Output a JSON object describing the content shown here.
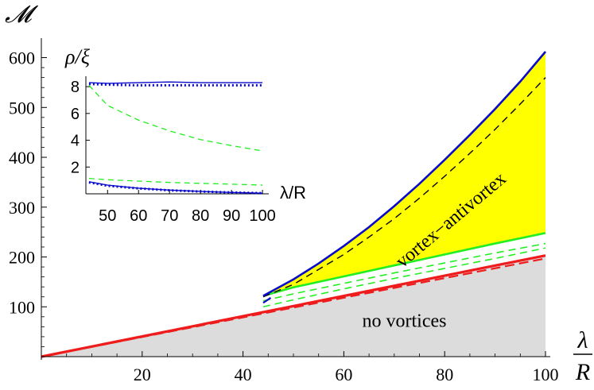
{
  "chart_data": {
    "type": "area",
    "main": {
      "ylabel": "𝓜",
      "xlabel_num": "λ",
      "xlabel_den": "R",
      "xlim": [
        0,
        100
      ],
      "ylim": [
        0,
        620
      ],
      "xticks": [
        {
          "v": 20,
          "label": "20"
        },
        {
          "v": 40,
          "label": "40"
        },
        {
          "v": 60,
          "label": "60"
        },
        {
          "v": 80,
          "label": "80"
        },
        {
          "v": 100,
          "label": "100"
        }
      ],
      "yticks": [
        {
          "v": 100,
          "label": "100"
        },
        {
          "v": 200,
          "label": "200"
        },
        {
          "v": 300,
          "label": "300"
        },
        {
          "v": 400,
          "label": "400"
        },
        {
          "v": 500,
          "label": "500"
        },
        {
          "v": 600,
          "label": "600"
        }
      ],
      "annotations": [
        {
          "text": "no vortices",
          "x": 72,
          "y": 60,
          "rotate": 0
        },
        {
          "text": "vortex−antivortex",
          "x": 82,
          "y": 265,
          "rotate": -40
        }
      ],
      "colors": {
        "red": "#ee1c1c",
        "green": "#22ee22",
        "blue": "#0a0acc",
        "yellow": "#ffff00",
        "gray": "#dcdcdc",
        "black": "#000000"
      },
      "series": {
        "red_solid": {
          "x": [
            0,
            100
          ],
          "y": [
            0,
            203
          ]
        },
        "red_dashed": {
          "x": [
            0,
            100
          ],
          "y": [
            0,
            197
          ]
        },
        "green_solid": {
          "x": [
            44,
            50,
            60,
            70,
            80,
            90,
            100
          ],
          "y": [
            122,
            139,
            161,
            183,
            205,
            227,
            248
          ]
        },
        "green_dashed_upper": {
          "x": [
            44,
            50,
            60,
            70,
            80,
            90,
            100
          ],
          "y": [
            112,
            126,
            147,
            168,
            188,
            208,
            227
          ]
        },
        "green_dashed_lower": {
          "x": [
            44,
            50,
            60,
            70,
            80,
            90,
            100
          ],
          "y": [
            100,
            114,
            136,
            157,
            177,
            197,
            218
          ]
        },
        "blue_solid": {
          "x": [
            44,
            50,
            55,
            60,
            65,
            70,
            75,
            80,
            85,
            90,
            95,
            100
          ],
          "y": [
            122,
            155,
            187,
            222,
            260,
            302,
            347,
            395,
            445,
            497,
            552,
            612
          ]
        },
        "blue_short": {
          "x": [
            44,
            45.5
          ],
          "y": [
            108,
            118
          ]
        },
        "black_dashed": {
          "x": [
            44,
            50,
            55,
            60,
            65,
            70,
            75,
            80,
            85,
            90,
            95,
            100
          ],
          "y": [
            120,
            145,
            175,
            205,
            240,
            277,
            318,
            362,
            408,
            456,
            507,
            560
          ]
        }
      }
    },
    "inset": {
      "title": "ρ/ξ",
      "xlabel": "λ/R",
      "xlim": [
        43,
        101
      ],
      "ylim": [
        0,
        8.6
      ],
      "xticks": [
        {
          "v": 50,
          "label": "50"
        },
        {
          "v": 60,
          "label": "60"
        },
        {
          "v": 70,
          "label": "70"
        },
        {
          "v": 80,
          "label": "80"
        },
        {
          "v": 90,
          "label": "90"
        },
        {
          "v": 100,
          "label": "100"
        }
      ],
      "yticks": [
        {
          "v": 2,
          "label": "2"
        },
        {
          "v": 4,
          "label": "4"
        },
        {
          "v": 6,
          "label": "6"
        },
        {
          "v": 8,
          "label": "8"
        }
      ],
      "series": {
        "blue_solid_top": {
          "x": [
            44,
            50,
            60,
            70,
            80,
            90,
            100
          ],
          "y": [
            8.3,
            8.25,
            8.3,
            8.35,
            8.3,
            8.3,
            8.3
          ]
        },
        "blue_dotted_top": {
          "x": [
            44,
            50,
            60,
            70,
            80,
            90,
            100
          ],
          "y": [
            8.2,
            8.15,
            8.1,
            8.1,
            8.1,
            8.1,
            8.1
          ]
        },
        "green_dashed_mid": {
          "x": [
            44,
            50,
            60,
            70,
            80,
            90,
            100
          ],
          "y": [
            8.1,
            6.6,
            5.5,
            4.7,
            4.05,
            3.6,
            3.2
          ]
        },
        "green_dashed_low": {
          "x": [
            44,
            50,
            60,
            70,
            80,
            90,
            100
          ],
          "y": [
            1.15,
            1.05,
            0.95,
            0.85,
            0.78,
            0.72,
            0.65
          ]
        },
        "blue_solid_low": {
          "x": [
            44,
            50,
            60,
            70,
            80,
            90,
            100
          ],
          "y": [
            0.9,
            0.65,
            0.42,
            0.28,
            0.18,
            0.1,
            0.05
          ]
        },
        "blue_dotted_low": {
          "x": [
            44,
            50,
            60,
            70,
            80,
            90,
            100
          ],
          "y": [
            0.85,
            0.6,
            0.4,
            0.26,
            0.17,
            0.1,
            0.05
          ]
        }
      }
    }
  }
}
